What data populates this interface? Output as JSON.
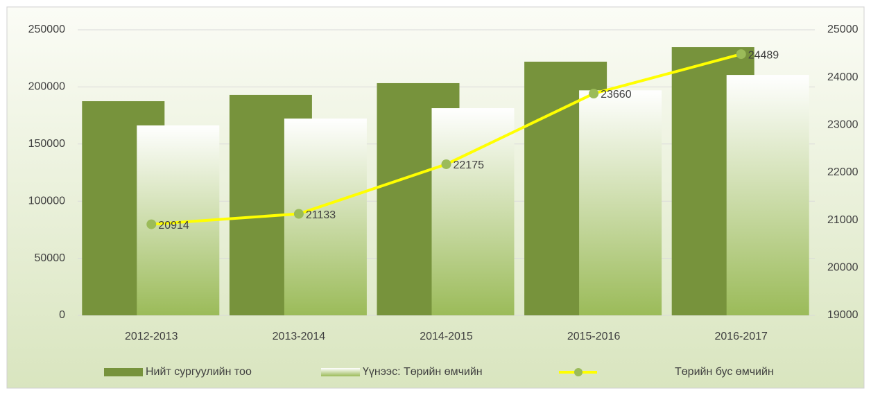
{
  "chart_data": {
    "type": "bar_line",
    "categories": [
      "2012-2013",
      "2013-2014",
      "2014-2015",
      "2015-2016",
      "2016-2017"
    ],
    "series": [
      {
        "name": "Нийт сургуулийн тоо",
        "color": "#77933c",
        "values": [
          187500,
          193000,
          203300,
          222100,
          234800
        ]
      },
      {
        "name": "Үүнээс: Төрийн өмчийн",
        "color": "#9bbb59",
        "values": [
          166300,
          172300,
          181400,
          197000,
          210500
        ]
      },
      {
        "name": "Төрийн бус өмчийн",
        "color": "#ffff00",
        "axis": "y2",
        "values": [
          20914,
          21133,
          22175,
          23660,
          24489
        ]
      }
    ],
    "ylim": [
      0,
      250000
    ],
    "yticks": [
      0,
      50000,
      100000,
      150000,
      200000,
      250000
    ],
    "y2lim": [
      19000,
      25000
    ],
    "y2ticks": [
      19000,
      20000,
      21000,
      22000,
      23000,
      24000,
      25000
    ],
    "grid": true,
    "legend": "bottom"
  }
}
